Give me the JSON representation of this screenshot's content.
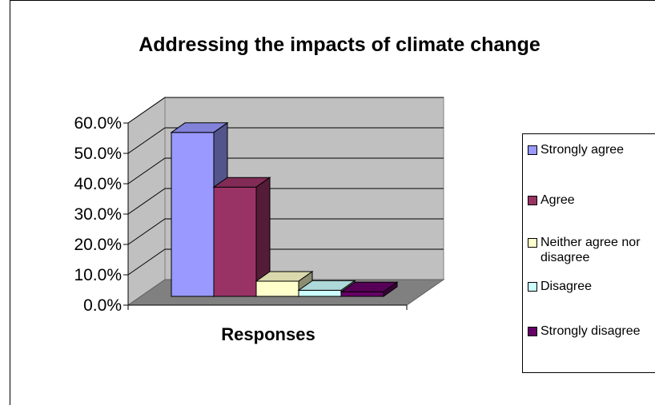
{
  "chart_data": {
    "type": "bar",
    "title": "Addressing the impacts of climate change",
    "xlabel": "Responses",
    "ylabel": "",
    "categories": [
      "Responses"
    ],
    "series": [
      {
        "name": "Strongly agree",
        "values": [
          54.0
        ],
        "color": "#9999ff"
      },
      {
        "name": "Agree",
        "values": [
          36.0
        ],
        "color": "#993366"
      },
      {
        "name": "Neither agree nor disagree",
        "values": [
          5.0
        ],
        "color": "#ffffcc"
      },
      {
        "name": "Disagree",
        "values": [
          2.0
        ],
        "color": "#ccffff"
      },
      {
        "name": "Strongly disagree",
        "values": [
          1.5
        ],
        "color": "#660066"
      }
    ],
    "ylim": [
      0,
      60
    ],
    "yticks": [
      "0.0%",
      "10.0%",
      "20.0%",
      "30.0%",
      "40.0%",
      "50.0%",
      "60.0%"
    ],
    "grid": true,
    "legend_position": "right",
    "style": "3d-column"
  }
}
